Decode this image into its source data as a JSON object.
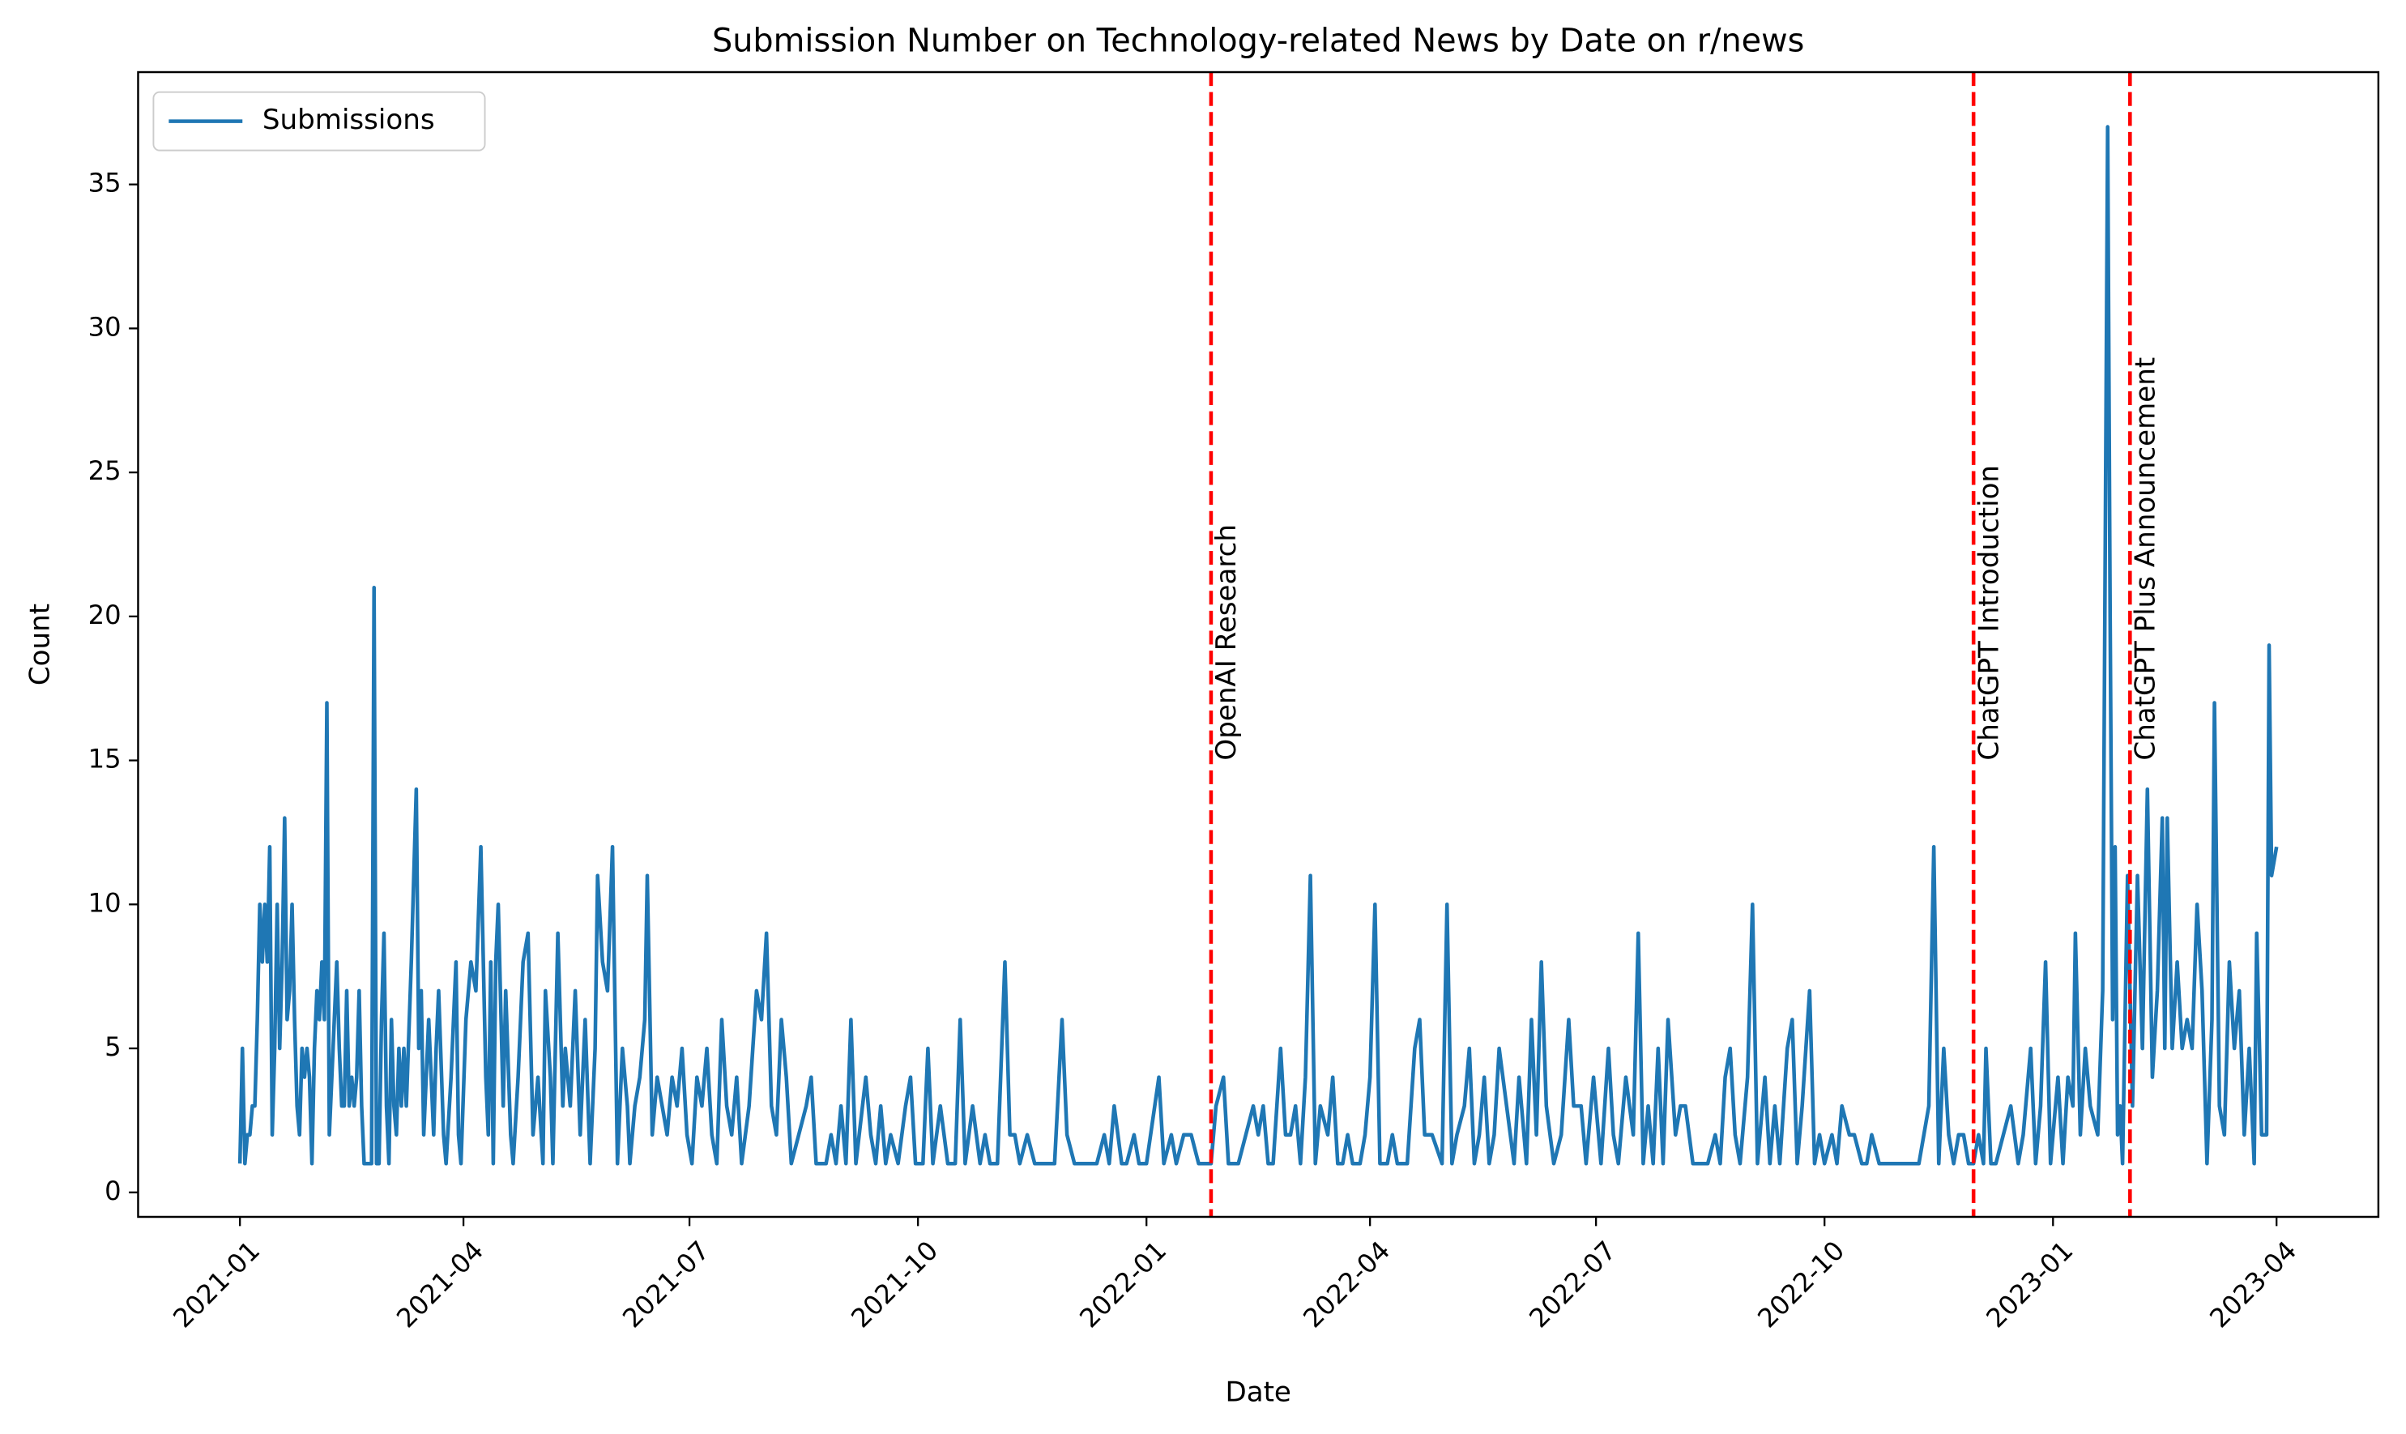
{
  "chart_data": {
    "type": "line",
    "title": "Submission Number on Technology-related News by Date on r/news",
    "xlabel": "Date",
    "ylabel": "Count",
    "legend": "upper left",
    "x": [
      0,
      1,
      2,
      3,
      4,
      5,
      6,
      7,
      8,
      9,
      10,
      11,
      12,
      13,
      14,
      15,
      16,
      17,
      18,
      19,
      20,
      21,
      22,
      23,
      24,
      25,
      26,
      27,
      28,
      29,
      30,
      31,
      32,
      33,
      34,
      35,
      36,
      37,
      38,
      39,
      40,
      41,
      42,
      43,
      44,
      45,
      46,
      47,
      48,
      49,
      50,
      51,
      53,
      54,
      55,
      56,
      57,
      58,
      59,
      60,
      61,
      62,
      63,
      64,
      65,
      66,
      67,
      69,
      70,
      71,
      72,
      73,
      74,
      75,
      76,
      78,
      79,
      80,
      82,
      83,
      85,
      87,
      88,
      89,
      91,
      93,
      95,
      97,
      99,
      100,
      101,
      102,
      103,
      104,
      106,
      107,
      109,
      110,
      112,
      114,
      116,
      118,
      120,
      122,
      123,
      125,
      126,
      128,
      130,
      131,
      133,
      135,
      137,
      139,
      141,
      143,
      144,
      146,
      148,
      150,
      152,
      154,
      156,
      157,
      159,
      161,
      163,
      164,
      166,
      168,
      170,
      172,
      174,
      176,
      178,
      180,
      182,
      184,
      186,
      188,
      190,
      192,
      194,
      196,
      198,
      200,
      202,
      205,
      208,
      210,
      212,
      214,
      216,
      218,
      220,
      222,
      225,
      228,
      230,
      232,
      236,
      238,
      240,
      242,
      244,
      246,
      248,
      252,
      254,
      256,
      258,
      260,
      262,
      265,
      268,
      270,
      272,
      275,
      277,
      279,
      282,
      285,
      288,
      290,
      292,
      295,
      298,
      300,
      302,
      305,
      308,
      310,
      312,
      314,
      317,
      320,
      324,
      328,
      331,
      333,
      336,
      340,
      345,
      348,
      350,
      352,
      355,
      357,
      360,
      362,
      365,
      370,
      372,
      375,
      377,
      380,
      383,
      386,
      391,
      393,
      396,
      398,
      402,
      405,
      408,
      410,
      412,
      414,
      416,
      419,
      421,
      423,
      425,
      427,
      429,
      431,
      433,
      435,
      438,
      440,
      442,
      444,
      446,
      448,
      451,
      453,
      455,
      457,
      459,
      462,
      464,
      466,
      470,
      473,
      475,
      477,
      480,
      484,
      486,
      488,
      490,
      493,
      495,
      497,
      499,
      501,
      503,
      505,
      507,
      510,
      513,
      515,
      518,
      520,
      522,
      524,
      526,
      529,
      532,
      535,
      537,
      540,
      542,
      545,
      548,
      551,
      553,
      555,
      558,
      561,
      563,
      565,
      567,
      569,
      571,
      573,
      575,
      578,
      580,
      582,
      585,
      588,
      591,
      594,
      596,
      598,
      600,
      602,
      604,
      607,
      609,
      611,
      614,
      616,
      618,
      620,
      623,
      625,
      627,
      629,
      632,
      634,
      636,
      638,
      641,
      643,
      645,
      648,
      650,
      653,
      655,
      657,
      660,
      664,
      670,
      676,
      680,
      682,
      684,
      686,
      688,
      690,
      692,
      694,
      696,
      698,
      700,
      702,
      703,
      705,
      707,
      710,
      713,
      716,
      718,
      721,
      723,
      725,
      727,
      729,
      732,
      734,
      736,
      738,
      739,
      741,
      743,
      745,
      748,
      750,
      752,
      753,
      754,
      755,
      756,
      757,
      758,
      760,
      761,
      762,
      764,
      766,
      768,
      770,
      772,
      774,
      775,
      776,
      778,
      780,
      782,
      784,
      786,
      788,
      790,
      792,
      794,
      795,
      797,
      799,
      801,
      803,
      805,
      807,
      809,
      811,
      812,
      814,
      816,
      817,
      818,
      820
    ],
    "series": [
      {
        "name": "Submissions",
        "color": "#1f77b4",
        "values": [
          1,
          5,
          1,
          2,
          2,
          3,
          3,
          6,
          10,
          8,
          10,
          8,
          12,
          2,
          5,
          10,
          5,
          8,
          13,
          6,
          7,
          10,
          6,
          3,
          2,
          5,
          4,
          5,
          4,
          1,
          5,
          7,
          6,
          8,
          6,
          17,
          2,
          4,
          6,
          8,
          5,
          3,
          3,
          7,
          3,
          4,
          3,
          4,
          7,
          3,
          1,
          1,
          1,
          21,
          1,
          1,
          6,
          9,
          3,
          1,
          6,
          3,
          2,
          5,
          3,
          5,
          3,
          8,
          11,
          14,
          5,
          7,
          2,
          4,
          6,
          2,
          5,
          7,
          2,
          1,
          4,
          8,
          2,
          1,
          6,
          8,
          7,
          12,
          4,
          2,
          8,
          1,
          8,
          10,
          3,
          7,
          2,
          1,
          4,
          8,
          9,
          2,
          4,
          1,
          7,
          4,
          1,
          9,
          3,
          5,
          3,
          7,
          2,
          6,
          1,
          5,
          11,
          8,
          7,
          12,
          1,
          5,
          3,
          1,
          3,
          4,
          6,
          11,
          2,
          4,
          3,
          2,
          4,
          3,
          5,
          2,
          1,
          4,
          3,
          5,
          2,
          1,
          6,
          3,
          2,
          4,
          1,
          3,
          7,
          6,
          9,
          3,
          2,
          6,
          4,
          1,
          2,
          3,
          4,
          1,
          1,
          2,
          1,
          3,
          1,
          6,
          1,
          4,
          2,
          1,
          3,
          1,
          2,
          1,
          3,
          4,
          1,
          1,
          5,
          1,
          3,
          1,
          1,
          6,
          1,
          3,
          1,
          2,
          1,
          1,
          8,
          2,
          2,
          1,
          2,
          1,
          1,
          1,
          6,
          2,
          1,
          1,
          1,
          2,
          1,
          3,
          1,
          1,
          2,
          1,
          1,
          4,
          1,
          2,
          1,
          2,
          2,
          1,
          1,
          3,
          4,
          1,
          1,
          2,
          3,
          2,
          3,
          1,
          1,
          5,
          2,
          2,
          3,
          1,
          4,
          11,
          1,
          3,
          2,
          4,
          1,
          1,
          2,
          1,
          1,
          2,
          4,
          10,
          1,
          1,
          2,
          1,
          1,
          5,
          6,
          2,
          2,
          1,
          10,
          1,
          2,
          3,
          5,
          1,
          2,
          4,
          1,
          2,
          5,
          3,
          1,
          4,
          1,
          6,
          2,
          8,
          3,
          1,
          2,
          6,
          3,
          3,
          1,
          4,
          1,
          5,
          2,
          1,
          4,
          2,
          9,
          1,
          3,
          1,
          5,
          1,
          6,
          2,
          3,
          3,
          1,
          1,
          1,
          2,
          1,
          4,
          5,
          2,
          1,
          4,
          10,
          1,
          4,
          1,
          3,
          1,
          5,
          6,
          1,
          3,
          7,
          1,
          2,
          1,
          2,
          1,
          3,
          2,
          2,
          1,
          1,
          2,
          1,
          1,
          1,
          1,
          3,
          12,
          1,
          5,
          2,
          1,
          2,
          2,
          1,
          1,
          2,
          1,
          5,
          1,
          1,
          2,
          3,
          1,
          2,
          5,
          1,
          3,
          8,
          1,
          4,
          1,
          4,
          3,
          9,
          2,
          5,
          3,
          2,
          7,
          37,
          20,
          6,
          12,
          2,
          3,
          1,
          11,
          7,
          3,
          11,
          5,
          14,
          4,
          7,
          13,
          5,
          13,
          5,
          8,
          5,
          6,
          5,
          10,
          7,
          1,
          6,
          17,
          3,
          2,
          8,
          5,
          7,
          2,
          5,
          1,
          9,
          2,
          2,
          19,
          11,
          12
        ]
      }
    ],
    "xlim": [
      -41,
      861
    ],
    "ylim": [
      -0.85,
      38.9
    ],
    "xticks": [
      {
        "value": 0,
        "label": "2021-01"
      },
      {
        "value": 90,
        "label": "2021-04"
      },
      {
        "value": 181,
        "label": "2021-07"
      },
      {
        "value": 273,
        "label": "2021-10"
      },
      {
        "value": 365,
        "label": "2022-01"
      },
      {
        "value": 455,
        "label": "2022-04"
      },
      {
        "value": 546,
        "label": "2022-07"
      },
      {
        "value": 638,
        "label": "2022-10"
      },
      {
        "value": 730,
        "label": "2023-01"
      },
      {
        "value": 820,
        "label": "2023-04"
      }
    ],
    "yticks": [
      0,
      5,
      10,
      15,
      20,
      25,
      30,
      35
    ],
    "vline_color": "#ff0000",
    "annotations": [
      {
        "x": 391,
        "y": 15,
        "text": "OpenAI Research"
      },
      {
        "x": 698,
        "y": 15,
        "text": "ChatGPT Introduction"
      },
      {
        "x": 761,
        "y": 15,
        "text": "ChatGPT Plus Announcement"
      }
    ]
  }
}
